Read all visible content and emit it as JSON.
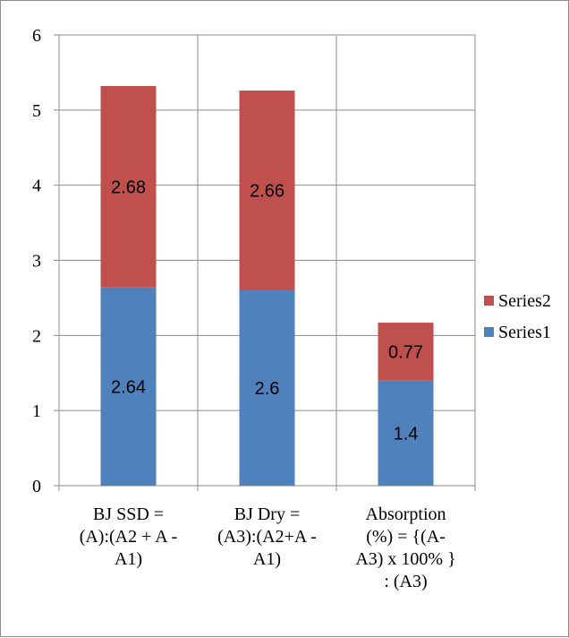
{
  "chart_data": {
    "type": "bar",
    "stacked": true,
    "categories": [
      [
        "BJ SSD =",
        "(A):(A2 + A -",
        "A1)"
      ],
      [
        "BJ Dry =",
        "(A3):(A2+A -",
        "A1)"
      ],
      [
        "Absorption",
        "(%) = {(A-",
        "A3) x 100% }",
        ": (A3)"
      ]
    ],
    "series": [
      {
        "name": "Series1",
        "values": [
          2.64,
          2.6,
          1.4
        ],
        "color": "#4f81bd"
      },
      {
        "name": "Series2",
        "values": [
          2.68,
          2.66,
          0.77
        ],
        "color": "#c0504d"
      }
    ],
    "data_labels": [
      [
        "2.64",
        "2.6",
        "1.4"
      ],
      [
        "2.68",
        "2.66",
        "0.77"
      ]
    ],
    "yticks": [
      "0",
      "1",
      "2",
      "3",
      "4",
      "5",
      "6"
    ],
    "ylim": [
      0,
      6
    ],
    "grid": true,
    "legend": "right"
  }
}
